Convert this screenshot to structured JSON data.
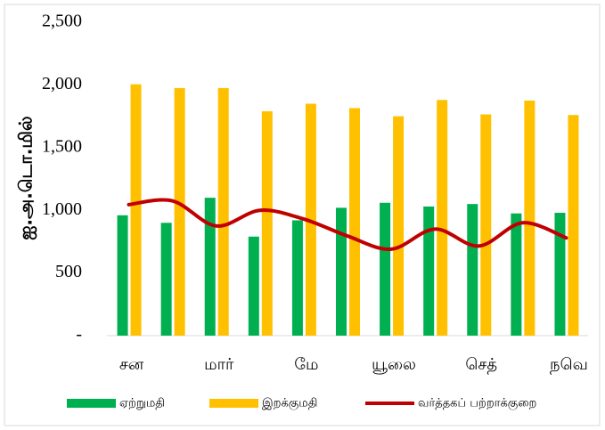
{
  "chart_data": {
    "type": "bar",
    "ylabel": "ஐ.அ.டொ.மில்",
    "categories": [
      "சன",
      null,
      "மார்",
      null,
      "மே",
      null,
      "யூலை",
      null,
      "செத்",
      null,
      "நவெ"
    ],
    "series": [
      {
        "name": "ஏற்றுமதி",
        "color": "#00b050",
        "type": "bar",
        "values": [
          960,
          900,
          1100,
          790,
          920,
          1020,
          1060,
          1030,
          1050,
          975,
          980
        ]
      },
      {
        "name": "இறக்குமதி",
        "color": "#ffc000",
        "type": "bar",
        "values": [
          2005,
          1975,
          1975,
          1790,
          1850,
          1815,
          1750,
          1880,
          1765,
          1875,
          1760
        ]
      },
      {
        "name": "வர்த்தகப் பற்றாக்குறை",
        "color": "#c00000",
        "type": "line",
        "values": [
          1045,
          1075,
          875,
          1000,
          930,
          795,
          690,
          850,
          715,
          900,
          780
        ]
      }
    ],
    "ylim": [
      0,
      2500
    ],
    "yticks": [
      {
        "value": 0,
        "label": "-"
      },
      500,
      {
        "value": 1000,
        "label": "1,000"
      },
      {
        "value": 1500,
        "label": "1,500"
      },
      {
        "value": 2000,
        "label": "2,000"
      },
      {
        "value": 2500,
        "label": "2,500"
      }
    ],
    "grid": false
  }
}
